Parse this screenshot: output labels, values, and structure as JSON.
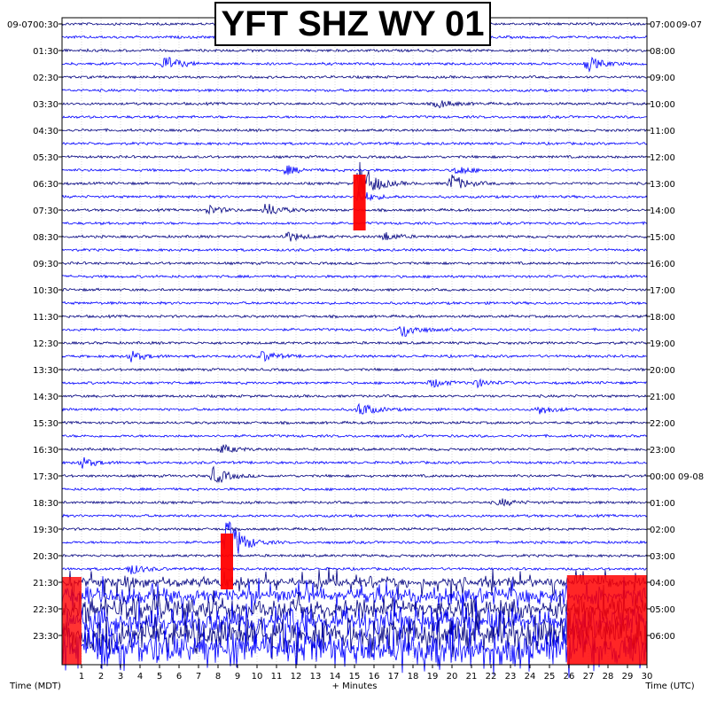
{
  "chart_data": {
    "type": "helicorder",
    "title": "YFT SHZ WY 01",
    "date_left": "09-07",
    "date_right": "09-07",
    "date_right_rollover": "09-08",
    "xlabel": "+ Minutes",
    "left_axis_label": "Time (MDT)",
    "right_axis_label": "Time (UTC)",
    "x_ticks": [
      "1",
      "2",
      "3",
      "4",
      "5",
      "6",
      "7",
      "8",
      "9",
      "10",
      "11",
      "12",
      "13",
      "14",
      "15",
      "16",
      "17",
      "18",
      "19",
      "20",
      "21",
      "22",
      "23",
      "24",
      "25",
      "26",
      "27",
      "28",
      "29",
      "30"
    ],
    "xlim": [
      0,
      30
    ],
    "left_times": [
      "00:30",
      "01:30",
      "02:30",
      "03:30",
      "04:30",
      "05:30",
      "06:30",
      "07:30",
      "08:30",
      "09:30",
      "10:30",
      "11:30",
      "12:30",
      "13:30",
      "14:30",
      "15:30",
      "16:30",
      "17:30",
      "18:30",
      "19:30",
      "20:30",
      "21:30",
      "22:30",
      "23:30"
    ],
    "right_times": [
      "07:00",
      "08:00",
      "09:00",
      "10:00",
      "11:00",
      "12:00",
      "13:00",
      "14:00",
      "15:00",
      "16:00",
      "17:00",
      "18:00",
      "19:00",
      "20:00",
      "21:00",
      "22:00",
      "23:00",
      "00:00",
      "01:00",
      "02:00",
      "03:00",
      "04:00",
      "05:00",
      "06:00"
    ],
    "rows_per_hour": 2,
    "trace_colors": [
      "#000080",
      "#0000ff"
    ],
    "clip_color": "#ff0000",
    "events": [
      {
        "row": 3,
        "minute": 5.3,
        "amp": 0.9
      },
      {
        "row": 3,
        "minute": 27.0,
        "amp": 0.8
      },
      {
        "row": 6,
        "minute": 19.3,
        "amp": 0.5
      },
      {
        "row": 11,
        "minute": 11.5,
        "amp": 0.5
      },
      {
        "row": 11,
        "minute": 20.3,
        "amp": 0.5
      },
      {
        "row": 12,
        "minute": 15.3,
        "amp": 2.6,
        "clipped": true
      },
      {
        "row": 12,
        "minute": 20.0,
        "amp": 1.0
      },
      {
        "row": 13,
        "minute": 15.2,
        "amp": 0.8
      },
      {
        "row": 14,
        "minute": 10.5,
        "amp": 0.8
      },
      {
        "row": 14,
        "minute": 7.5,
        "amp": 0.5
      },
      {
        "row": 16,
        "minute": 11.5,
        "amp": 0.6
      },
      {
        "row": 16,
        "minute": 16.5,
        "amp": 0.5
      },
      {
        "row": 23,
        "minute": 17.5,
        "amp": 0.9
      },
      {
        "row": 25,
        "minute": 3.5,
        "amp": 0.6
      },
      {
        "row": 25,
        "minute": 10.3,
        "amp": 0.6
      },
      {
        "row": 27,
        "minute": 19.0,
        "amp": 0.5
      },
      {
        "row": 27,
        "minute": 21.3,
        "amp": 0.4
      },
      {
        "row": 29,
        "minute": 15.3,
        "amp": 0.8
      },
      {
        "row": 29,
        "minute": 24.5,
        "amp": 0.5
      },
      {
        "row": 32,
        "minute": 8.2,
        "amp": 0.5
      },
      {
        "row": 33,
        "minute": 1.0,
        "amp": 0.6
      },
      {
        "row": 34,
        "minute": 7.8,
        "amp": 1.0
      },
      {
        "row": 36,
        "minute": 22.5,
        "amp": 0.4
      },
      {
        "row": 39,
        "minute": 8.5,
        "amp": 3.0,
        "clipped": true
      },
      {
        "row": 41,
        "minute": 3.5,
        "amp": 0.6
      }
    ]
  }
}
